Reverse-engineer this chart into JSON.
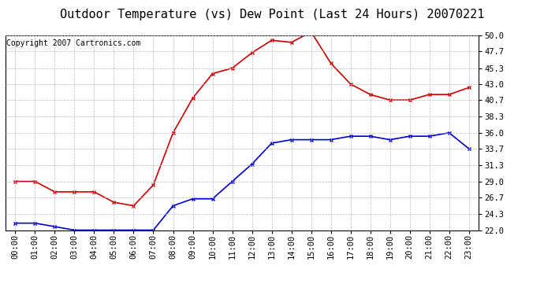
{
  "title": "Outdoor Temperature (vs) Dew Point (Last 24 Hours) 20070221",
  "copyright": "Copyright 2007 Cartronics.com",
  "x_labels": [
    "00:00",
    "01:00",
    "02:00",
    "03:00",
    "04:00",
    "05:00",
    "06:00",
    "07:00",
    "08:00",
    "09:00",
    "10:00",
    "11:00",
    "12:00",
    "13:00",
    "14:00",
    "15:00",
    "16:00",
    "17:00",
    "18:00",
    "19:00",
    "20:00",
    "21:00",
    "22:00",
    "23:00"
  ],
  "temp_data": [
    29.0,
    29.0,
    27.5,
    27.5,
    27.5,
    26.0,
    25.5,
    28.5,
    36.0,
    41.0,
    44.5,
    45.3,
    47.5,
    49.3,
    49.0,
    50.5,
    46.0,
    43.0,
    41.5,
    40.7,
    40.7,
    41.5,
    41.5,
    42.5
  ],
  "dew_data": [
    23.0,
    23.0,
    22.5,
    22.0,
    22.0,
    22.0,
    22.0,
    22.0,
    25.5,
    26.5,
    26.5,
    29.0,
    31.5,
    34.5,
    35.0,
    35.0,
    35.0,
    35.5,
    35.5,
    35.0,
    35.5,
    35.5,
    36.0,
    33.7
  ],
  "temp_color": "#cc0000",
  "dew_color": "#0000cc",
  "y_min": 22.0,
  "y_max": 50.0,
  "y_ticks": [
    22.0,
    24.3,
    26.7,
    29.0,
    31.3,
    33.7,
    36.0,
    38.3,
    40.7,
    43.0,
    45.3,
    47.7,
    50.0
  ],
  "background_color": "#ffffff",
  "plot_bg_color": "#ffffff",
  "grid_color": "#bbbbbb",
  "title_fontsize": 11,
  "copyright_fontsize": 7,
  "tick_fontsize": 7.5
}
